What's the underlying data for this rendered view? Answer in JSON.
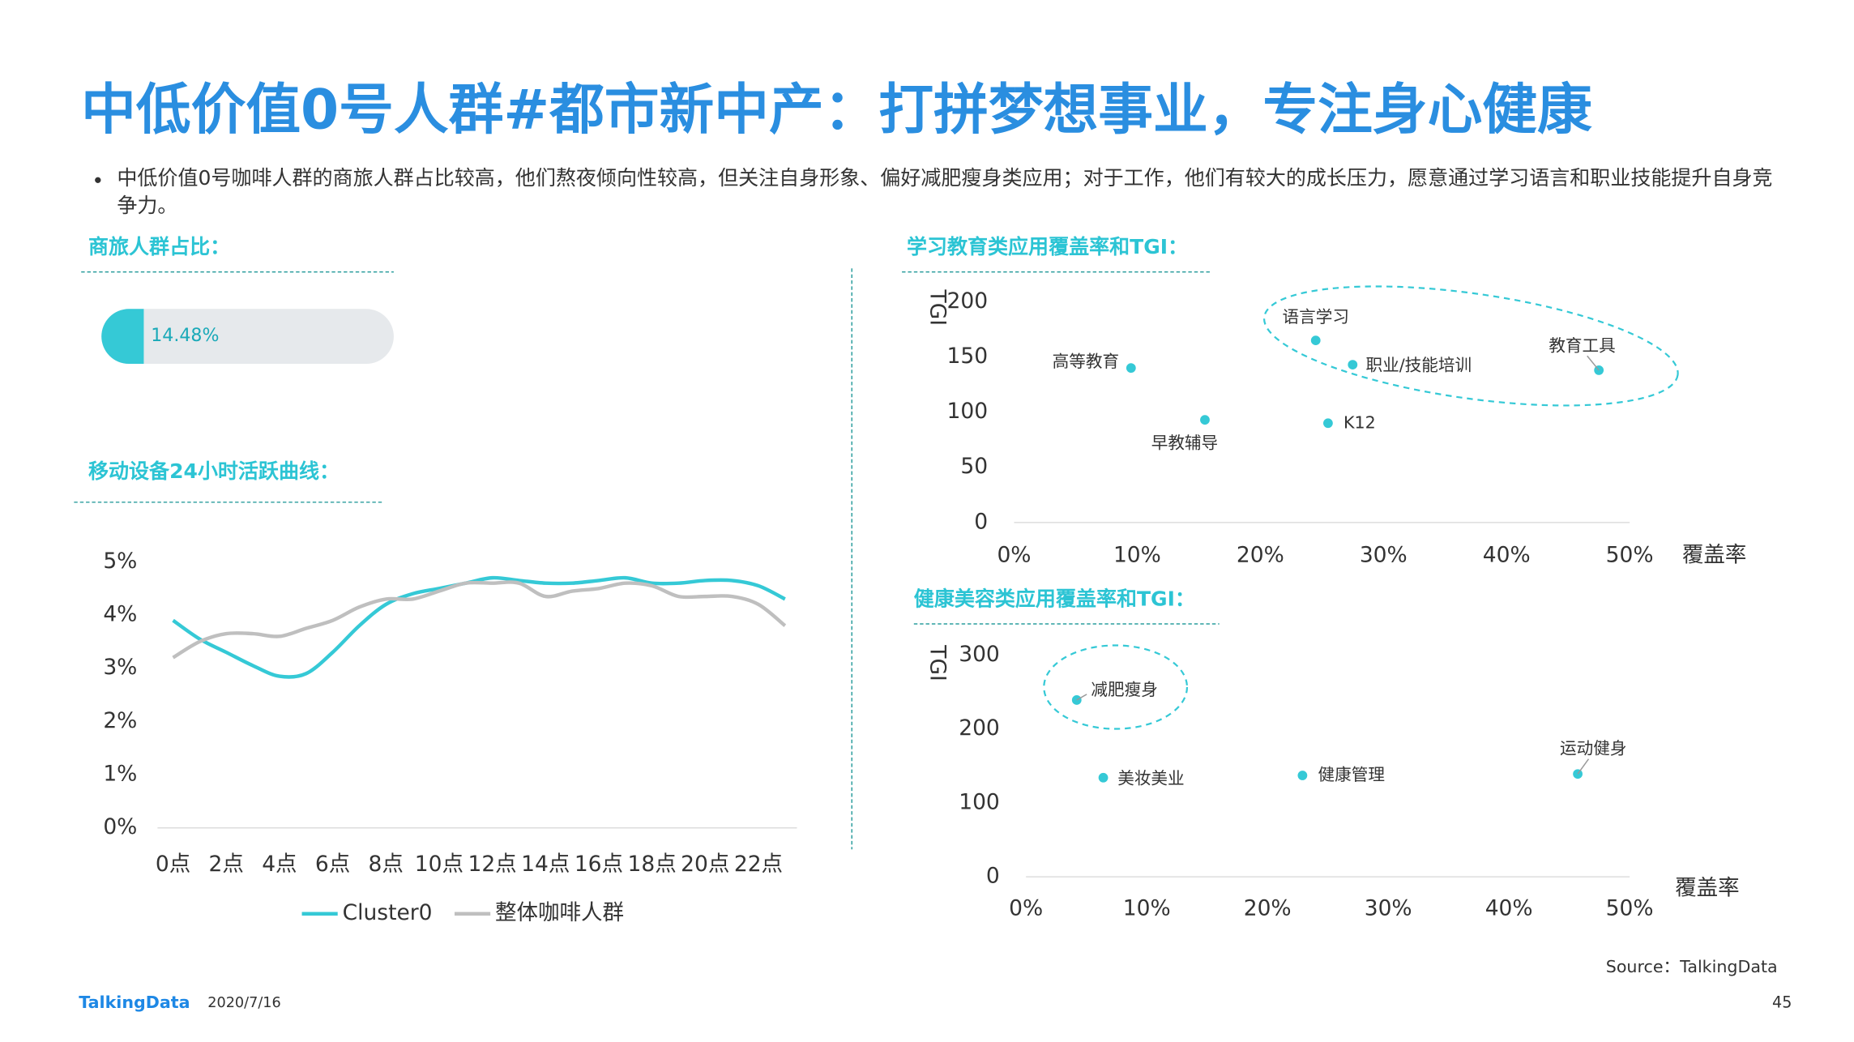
{
  "title": "中低价值0号人群#都市新中产：打拼梦想事业，专注身心健康",
  "bullet": "中低价值0号咖啡人群的商旅人群占比较高，他们熬夜倾向性较高，但关注自身形象、偏好减肥瘦身类应用；对于工作，他们有较大的成长压力，愿意通过学习语言和职业技能提升自身竞争力。",
  "source": "Source：TalkingData",
  "logo": "TalkingData",
  "date": "2020/7/16",
  "page": "45",
  "chart_data": [
    {
      "type": "progress",
      "title": "商旅人群占比：",
      "value": 14.48,
      "value_label": "14.48%",
      "xlim": [
        0,
        100
      ],
      "color": "#35c9d6",
      "track_color": "#e6e9ec"
    },
    {
      "type": "line",
      "title": "移动设备24小时活跃曲线：",
      "categories": [
        "0点",
        null,
        "2点",
        null,
        "4点",
        null,
        "6点",
        null,
        "8点",
        null,
        "10点",
        null,
        "12点",
        null,
        "14点",
        null,
        "16点",
        null,
        "18点",
        null,
        "20点",
        null,
        "22点",
        null
      ],
      "series": [
        {
          "name": "Cluster0",
          "color": "#35c9d6",
          "values": [
            3.9,
            3.55,
            3.3,
            3.05,
            2.85,
            2.9,
            3.3,
            3.8,
            4.2,
            4.4,
            4.5,
            4.6,
            4.7,
            4.65,
            4.6,
            4.6,
            4.65,
            4.7,
            4.6,
            4.6,
            4.65,
            4.65,
            4.55,
            4.3
          ]
        },
        {
          "name": "整体咖啡人群",
          "color": "#bfbfbf",
          "values": [
            3.2,
            3.5,
            3.65,
            3.65,
            3.6,
            3.75,
            3.9,
            4.15,
            4.3,
            4.3,
            4.45,
            4.6,
            4.6,
            4.6,
            4.35,
            4.45,
            4.5,
            4.6,
            4.55,
            4.35,
            4.35,
            4.35,
            4.2,
            3.8
          ]
        }
      ],
      "ylim": [
        0,
        5
      ],
      "yticks": [
        {
          "value": 0,
          "label": "0%"
        },
        {
          "value": 1,
          "label": "1%"
        },
        {
          "value": 2,
          "label": "2%"
        },
        {
          "value": 3,
          "label": "3%"
        },
        {
          "value": 4,
          "label": "4%"
        },
        {
          "value": 5,
          "label": "5%"
        }
      ],
      "grid": false
    },
    {
      "type": "scatter",
      "title": "学习教育类应用覆盖率和TGI：",
      "x_label": "覆盖率",
      "y_label": "TGI",
      "color": "#35c9d6",
      "labels": [
        "高等教育",
        "语言学习",
        "职业/技能培训",
        "教育工具",
        "早教辅导",
        "K12"
      ],
      "x": [
        9.5,
        24.5,
        27.5,
        47.5,
        15.5,
        25.5
      ],
      "values": [
        140,
        165,
        143,
        138,
        93,
        90
      ],
      "xlim": [
        0,
        50
      ],
      "ylim": [
        0,
        200
      ],
      "xticks": [
        {
          "value": 0,
          "label": "0%"
        },
        {
          "value": 10,
          "label": "10%"
        },
        {
          "value": 20,
          "label": "20%"
        },
        {
          "value": 30,
          "label": "30%"
        },
        {
          "value": 40,
          "label": "40%"
        },
        {
          "value": 50,
          "label": "50%"
        }
      ],
      "yticks": [
        0,
        50,
        100,
        150,
        200
      ]
    },
    {
      "type": "scatter",
      "title": "健康美容类应用覆盖率和TGI：",
      "x_label": "覆盖率",
      "y_label": "TGI",
      "color": "#35c9d6",
      "labels": [
        "减肥瘦身",
        "美妆美业",
        "健康管理",
        "运动健身"
      ],
      "x": [
        4.2,
        6.4,
        22.9,
        45.7
      ],
      "values": [
        239,
        134,
        137,
        139
      ],
      "xlim": [
        0,
        50
      ],
      "ylim": [
        0,
        300
      ],
      "xticks": [
        {
          "value": 0,
          "label": "0%"
        },
        {
          "value": 10,
          "label": "10%"
        },
        {
          "value": 20,
          "label": "20%"
        },
        {
          "value": 30,
          "label": "30%"
        },
        {
          "value": 40,
          "label": "40%"
        },
        {
          "value": 50,
          "label": "50%"
        }
      ],
      "yticks": [
        0,
        100,
        200,
        300
      ]
    }
  ]
}
